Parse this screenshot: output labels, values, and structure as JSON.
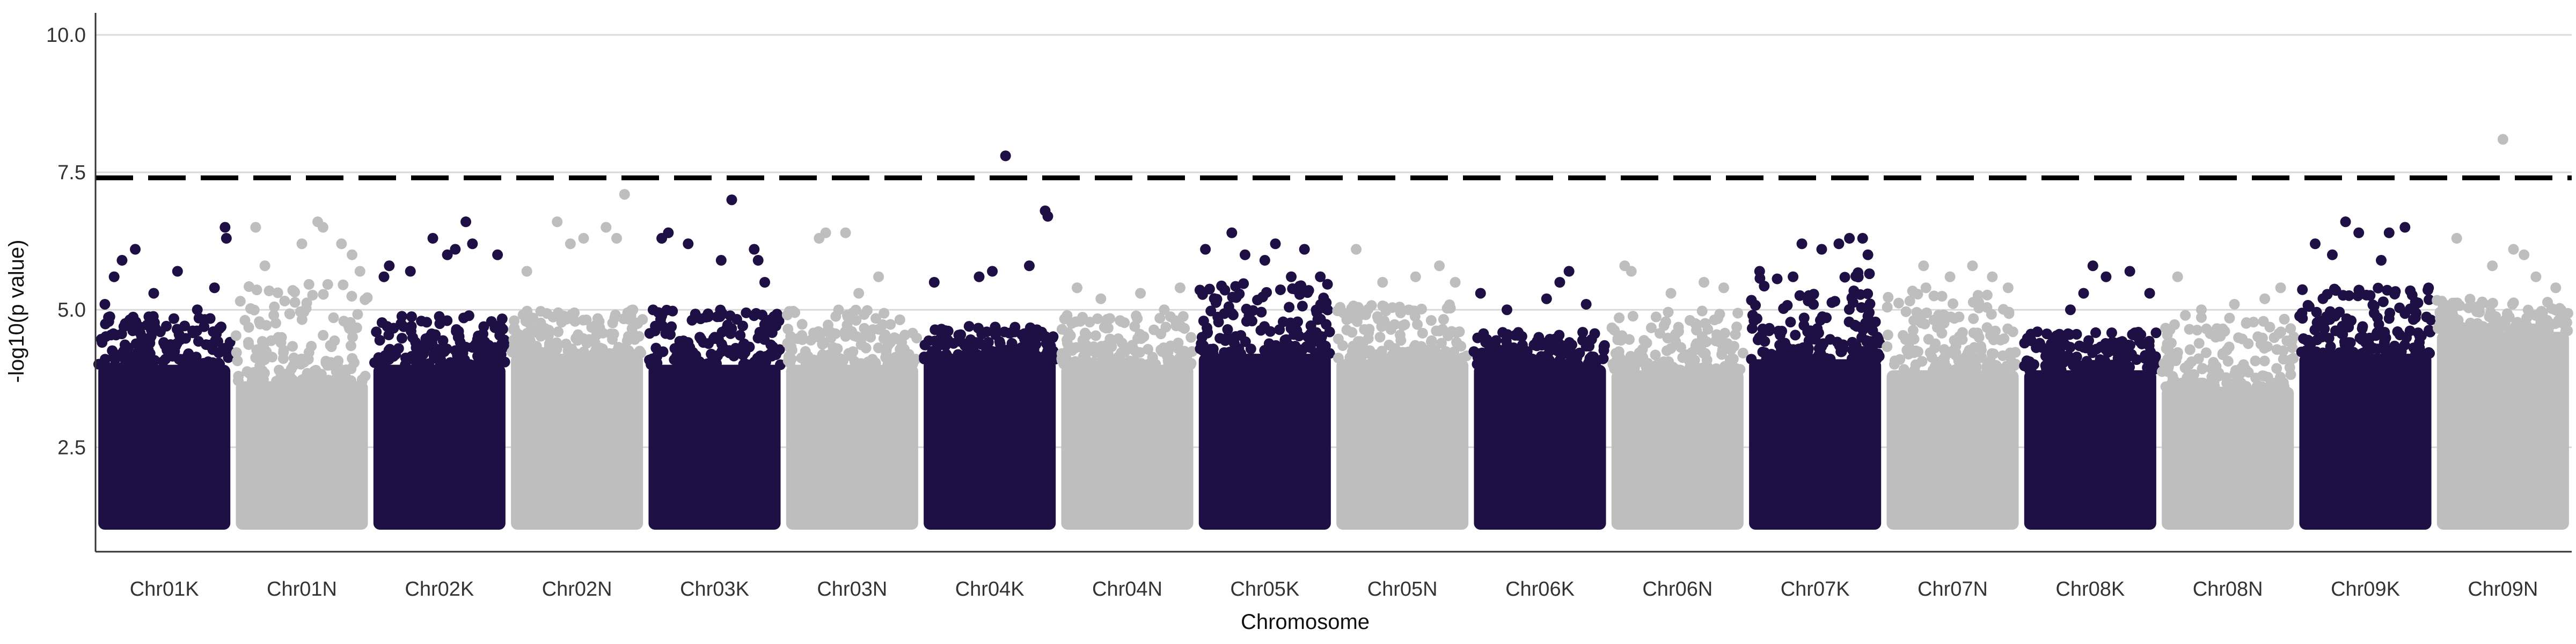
{
  "chart_data": {
    "type": "scatter",
    "title": "",
    "xlabel": "Chromosome",
    "ylabel": "-log10(p value)",
    "ylim": [
      0.6,
      10.4
    ],
    "y_ticks": [
      2.5,
      5.0,
      7.5,
      10.0
    ],
    "y_tick_labels": [
      "2.5",
      "5.0",
      "7.5",
      "10.0"
    ],
    "grid": "horizontal major lines",
    "legend": "none",
    "significance_threshold": 7.4,
    "colors": {
      "odd": "#1e0f45",
      "even": "#bebebe",
      "threshold": "#000000",
      "grid": "#d9d9d9"
    },
    "categories": [
      "Chr01K",
      "Chr01N",
      "Chr02K",
      "Chr02N",
      "Chr03K",
      "Chr03N",
      "Chr04K",
      "Chr04N",
      "Chr05K",
      "Chr05N",
      "Chr06K",
      "Chr06N",
      "Chr07K",
      "Chr07N",
      "Chr08K",
      "Chr08N",
      "Chr09K",
      "Chr09N"
    ],
    "band_max": [
      4.0,
      3.7,
      4.0,
      4.2,
      4.0,
      4.0,
      4.1,
      4.0,
      4.2,
      4.1,
      4.0,
      3.9,
      4.1,
      3.9,
      3.9,
      3.6,
      4.2,
      4.6
    ],
    "mid_max": [
      4.9,
      5.5,
      4.9,
      5.0,
      5.0,
      5.0,
      4.7,
      4.9,
      5.5,
      5.1,
      4.6,
      5.0,
      5.7,
      5.4,
      4.6,
      4.9,
      5.4,
      5.2
    ],
    "top_hits": [
      [
        [
          0.05,
          5.1
        ],
        [
          0.12,
          5.6
        ],
        [
          0.18,
          5.9
        ],
        [
          0.28,
          6.1
        ],
        [
          0.42,
          5.3
        ],
        [
          0.6,
          5.7
        ],
        [
          0.75,
          5.0
        ],
        [
          0.88,
          5.4
        ],
        [
          0.96,
          6.5
        ],
        [
          0.97,
          6.3
        ]
      ],
      [
        [
          0.15,
          6.5
        ],
        [
          0.22,
          5.8
        ],
        [
          0.5,
          6.2
        ],
        [
          0.62,
          6.6
        ],
        [
          0.66,
          6.5
        ],
        [
          0.8,
          6.2
        ],
        [
          0.88,
          6.0
        ],
        [
          0.94,
          5.7
        ]
      ],
      [
        [
          0.08,
          5.6
        ],
        [
          0.12,
          5.8
        ],
        [
          0.28,
          5.7
        ],
        [
          0.45,
          6.3
        ],
        [
          0.56,
          6.0
        ],
        [
          0.62,
          6.1
        ],
        [
          0.7,
          6.6
        ],
        [
          0.75,
          6.2
        ],
        [
          0.94,
          6.0
        ]
      ],
      [
        [
          0.12,
          5.7
        ],
        [
          0.35,
          6.6
        ],
        [
          0.45,
          6.2
        ],
        [
          0.55,
          6.3
        ],
        [
          0.72,
          6.5
        ],
        [
          0.8,
          6.3
        ],
        [
          0.86,
          7.1
        ]
      ],
      [
        [
          0.1,
          6.3
        ],
        [
          0.15,
          6.4
        ],
        [
          0.3,
          6.2
        ],
        [
          0.55,
          5.9
        ],
        [
          0.63,
          7.0
        ],
        [
          0.8,
          6.1
        ],
        [
          0.83,
          5.9
        ],
        [
          0.88,
          5.5
        ]
      ],
      [
        [
          0.25,
          6.3
        ],
        [
          0.3,
          6.4
        ],
        [
          0.45,
          6.4
        ],
        [
          0.55,
          5.3
        ],
        [
          0.7,
          5.6
        ]
      ],
      [
        [
          0.08,
          5.5
        ],
        [
          0.42,
          5.6
        ],
        [
          0.52,
          5.7
        ],
        [
          0.62,
          7.8
        ],
        [
          0.8,
          5.8
        ],
        [
          0.92,
          6.8
        ],
        [
          0.94,
          6.7
        ]
      ],
      [
        [
          0.12,
          5.4
        ],
        [
          0.3,
          5.2
        ],
        [
          0.6,
          5.3
        ],
        [
          0.78,
          5.0
        ],
        [
          0.9,
          5.4
        ]
      ],
      [
        [
          0.05,
          6.1
        ],
        [
          0.25,
          6.4
        ],
        [
          0.35,
          6.0
        ],
        [
          0.5,
          5.9
        ],
        [
          0.58,
          6.2
        ],
        [
          0.7,
          5.6
        ],
        [
          0.8,
          6.1
        ],
        [
          0.92,
          5.6
        ]
      ],
      [
        [
          0.15,
          6.1
        ],
        [
          0.35,
          5.5
        ],
        [
          0.6,
          5.6
        ],
        [
          0.78,
          5.8
        ],
        [
          0.9,
          5.5
        ]
      ],
      [
        [
          0.05,
          5.3
        ],
        [
          0.25,
          5.0
        ],
        [
          0.55,
          5.2
        ],
        [
          0.65,
          5.5
        ],
        [
          0.72,
          5.7
        ],
        [
          0.85,
          5.1
        ]
      ],
      [
        [
          0.1,
          5.8
        ],
        [
          0.15,
          5.7
        ],
        [
          0.45,
          5.3
        ],
        [
          0.7,
          5.5
        ],
        [
          0.85,
          5.4
        ]
      ],
      [
        [
          0.08,
          5.7
        ],
        [
          0.4,
          6.2
        ],
        [
          0.55,
          6.1
        ],
        [
          0.68,
          6.2
        ],
        [
          0.76,
          6.3
        ],
        [
          0.86,
          6.3
        ],
        [
          0.9,
          6.0
        ]
      ],
      [
        [
          0.28,
          5.8
        ],
        [
          0.48,
          5.6
        ],
        [
          0.65,
          5.8
        ],
        [
          0.8,
          5.6
        ],
        [
          0.92,
          5.4
        ]
      ],
      [
        [
          0.1,
          4.6
        ],
        [
          0.35,
          5.0
        ],
        [
          0.45,
          5.3
        ],
        [
          0.52,
          5.8
        ],
        [
          0.62,
          5.6
        ],
        [
          0.8,
          5.7
        ],
        [
          0.95,
          5.3
        ]
      ],
      [
        [
          0.12,
          5.6
        ],
        [
          0.3,
          5.0
        ],
        [
          0.55,
          5.1
        ],
        [
          0.78,
          5.2
        ],
        [
          0.9,
          5.4
        ]
      ],
      [
        [
          0.12,
          6.2
        ],
        [
          0.25,
          6.0
        ],
        [
          0.35,
          6.6
        ],
        [
          0.45,
          6.4
        ],
        [
          0.62,
          5.9
        ],
        [
          0.68,
          6.4
        ],
        [
          0.8,
          6.5
        ]
      ],
      [
        [
          0.15,
          6.3
        ],
        [
          0.42,
          5.8
        ],
        [
          0.5,
          8.1
        ],
        [
          0.58,
          6.1
        ],
        [
          0.66,
          6.0
        ],
        [
          0.75,
          5.6
        ],
        [
          0.9,
          5.4
        ]
      ]
    ]
  }
}
